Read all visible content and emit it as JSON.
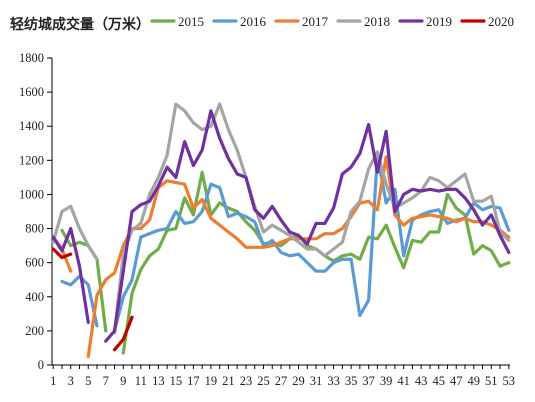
{
  "chart_data": {
    "type": "line",
    "title": "轻纺城成交量（万米）",
    "xlabel": "",
    "ylabel": "",
    "ylim": [
      0,
      1800
    ],
    "yticks": [
      0,
      200,
      400,
      600,
      800,
      1000,
      1200,
      1400,
      1600,
      1800
    ],
    "x_ticks": [
      1,
      3,
      5,
      7,
      9,
      11,
      13,
      15,
      17,
      19,
      21,
      23,
      25,
      27,
      29,
      31,
      33,
      35,
      37,
      39,
      41,
      43,
      45,
      47,
      49,
      51,
      53
    ],
    "xlim": [
      1,
      53
    ],
    "grid": false,
    "legend_position": "top",
    "series": [
      {
        "name": "2015",
        "color": "#70AD47",
        "x": [
          2,
          3,
          4,
          5,
          6,
          7,
          8,
          9,
          10,
          11,
          12,
          13,
          14,
          15,
          16,
          17,
          18,
          19,
          20,
          21,
          22,
          23,
          24,
          25,
          26,
          27,
          28,
          29,
          30,
          31,
          32,
          33,
          34,
          35,
          36,
          37,
          38,
          39,
          40,
          41,
          42,
          43,
          44,
          45,
          46,
          47,
          48,
          49,
          50,
          51,
          52,
          53
        ],
        "y": [
          790,
          700,
          720,
          700,
          620,
          200,
          null,
          70,
          420,
          560,
          640,
          680,
          790,
          800,
          980,
          880,
          1130,
          880,
          950,
          920,
          900,
          840,
          790,
          710,
          720,
          700,
          740,
          760,
          700,
          680,
          640,
          610,
          640,
          650,
          620,
          750,
          740,
          820,
          690,
          570,
          730,
          720,
          780,
          780,
          1000,
          920,
          880,
          650,
          700,
          670,
          580,
          600
        ]
      },
      {
        "name": "2016",
        "color": "#5B9BD5",
        "x": [
          2,
          3,
          4,
          5,
          6,
          7,
          8,
          9,
          10,
          11,
          12,
          13,
          14,
          15,
          16,
          17,
          18,
          19,
          20,
          21,
          22,
          23,
          24,
          25,
          26,
          27,
          28,
          29,
          30,
          31,
          32,
          33,
          34,
          35,
          36,
          37,
          38,
          39,
          40,
          41,
          42,
          43,
          44,
          45,
          46,
          47,
          48,
          49,
          50,
          51,
          52,
          53
        ],
        "y": [
          490,
          470,
          520,
          470,
          230,
          null,
          200,
          400,
          500,
          750,
          770,
          790,
          800,
          900,
          830,
          840,
          900,
          1060,
          1040,
          870,
          890,
          870,
          840,
          700,
          730,
          660,
          640,
          650,
          600,
          550,
          550,
          600,
          620,
          620,
          290,
          380,
          1230,
          950,
          1030,
          640,
          850,
          880,
          900,
          910,
          830,
          850,
          860,
          950,
          910,
          930,
          920,
          790
        ]
      },
      {
        "name": "2017",
        "color": "#ED7D31",
        "x": [
          1,
          2,
          3,
          4,
          5,
          6,
          7,
          8,
          9,
          10,
          11,
          12,
          13,
          14,
          15,
          16,
          17,
          18,
          19,
          20,
          21,
          22,
          23,
          24,
          25,
          26,
          27,
          28,
          29,
          30,
          31,
          32,
          33,
          34,
          35,
          36,
          37,
          38,
          39,
          40,
          41,
          42,
          43,
          44,
          45,
          46,
          47,
          48,
          49,
          50,
          51,
          52,
          53
        ],
        "y": [
          750,
          680,
          550,
          null,
          50,
          410,
          500,
          540,
          700,
          800,
          800,
          850,
          1040,
          1080,
          1070,
          1060,
          920,
          970,
          860,
          820,
          780,
          740,
          690,
          690,
          690,
          700,
          720,
          740,
          740,
          740,
          740,
          770,
          770,
          800,
          870,
          950,
          960,
          910,
          1220,
          880,
          820,
          860,
          870,
          880,
          870,
          860,
          840,
          860,
          840,
          840,
          820,
          790,
          750
        ]
      },
      {
        "name": "2018",
        "color": "#A5A5A5",
        "x": [
          1,
          2,
          3,
          4,
          5,
          6,
          7,
          8,
          9,
          10,
          11,
          12,
          13,
          14,
          15,
          16,
          17,
          18,
          19,
          20,
          21,
          22,
          23,
          24,
          25,
          26,
          27,
          28,
          29,
          30,
          31,
          32,
          33,
          34,
          35,
          36,
          37,
          38,
          39,
          40,
          41,
          42,
          43,
          44,
          45,
          46,
          47,
          48,
          49,
          50,
          51,
          52,
          53
        ],
        "y": [
          720,
          900,
          930,
          800,
          700,
          620,
          null,
          190,
          650,
          790,
          830,
          1000,
          1100,
          1230,
          1530,
          1490,
          1420,
          1380,
          1400,
          1530,
          1380,
          1260,
          1100,
          930,
          780,
          820,
          790,
          760,
          720,
          680,
          680,
          640,
          680,
          720,
          900,
          960,
          1150,
          1250,
          1060,
          920,
          950,
          980,
          1020,
          1100,
          1080,
          1040,
          1080,
          1120,
          960,
          960,
          990,
          780,
          730
        ]
      },
      {
        "name": "2019",
        "color": "#7030A0",
        "x": [
          1,
          2,
          3,
          4,
          5,
          6,
          7,
          8,
          9,
          10,
          11,
          12,
          13,
          14,
          15,
          16,
          17,
          18,
          19,
          20,
          21,
          22,
          23,
          24,
          25,
          26,
          27,
          28,
          29,
          30,
          31,
          32,
          33,
          34,
          35,
          36,
          37,
          38,
          39,
          40,
          41,
          42,
          43,
          44,
          45,
          46,
          47,
          48,
          49,
          50,
          51,
          52,
          53
        ],
        "y": [
          750,
          670,
          800,
          580,
          250,
          null,
          140,
          200,
          550,
          900,
          940,
          960,
          1050,
          1160,
          1100,
          1310,
          1170,
          1260,
          1490,
          1330,
          1210,
          1120,
          1100,
          910,
          860,
          930,
          850,
          780,
          760,
          710,
          830,
          830,
          920,
          1120,
          1160,
          1240,
          1410,
          1130,
          1370,
          900,
          1000,
          1030,
          1020,
          1030,
          1020,
          1030,
          1030,
          980,
          910,
          820,
          880,
          760,
          660
        ]
      },
      {
        "name": "2020",
        "color": "#C00000",
        "x": [
          1,
          2,
          3,
          4,
          5,
          6,
          7,
          8,
          9,
          10
        ],
        "y": [
          680,
          630,
          650,
          null,
          null,
          null,
          null,
          90,
          150,
          280
        ]
      }
    ]
  }
}
